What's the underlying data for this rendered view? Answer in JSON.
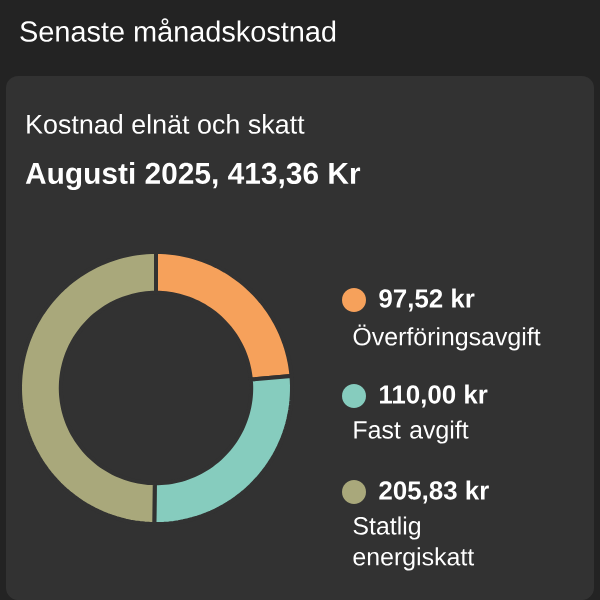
{
  "chart_data": {
    "type": "donut",
    "title": "Senaste månadskostnad",
    "subtitle": "Kostnad elnät och skatt",
    "annotations": [
      "Augusti 2025, 413,36 Kr"
    ],
    "categories": [
      "Överföringsavgift",
      "Fast avgift",
      "Statlig energiskatt"
    ],
    "values": [
      97.52,
      110.0,
      205.83
    ],
    "value_labels": [
      "97,52 kr",
      "110,00 kr",
      "205,83 kr"
    ],
    "colors": [
      "#f6a15b",
      "#86ccbe",
      "#a9a87b"
    ],
    "legend": "right"
  }
}
